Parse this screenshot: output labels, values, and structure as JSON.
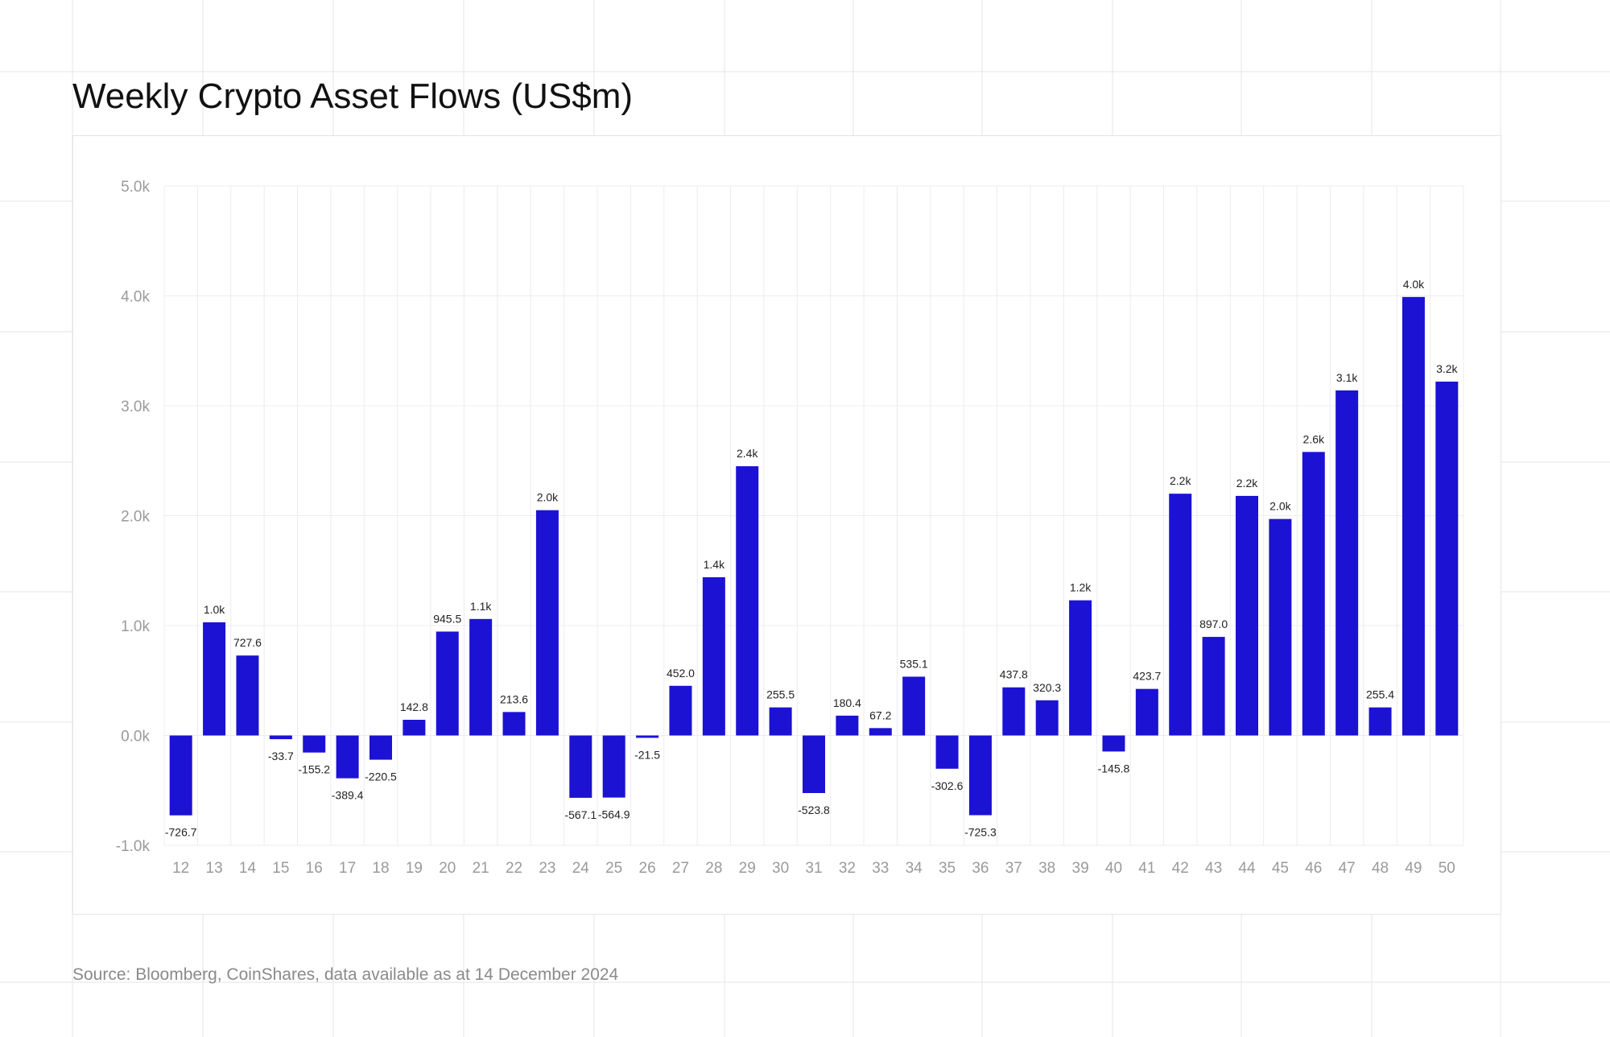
{
  "title": "Weekly Crypto Asset Flows (US$m)",
  "source": "Source: Bloomberg, CoinShares, data available as at 14 December 2024",
  "colors": {
    "bar": "#1c12d4",
    "grid": "#ececec",
    "tick": "#9a9a9a",
    "label": "#222222"
  },
  "chart_data": {
    "type": "bar",
    "title": "Weekly Crypto Asset Flows (US$m)",
    "xlabel": "",
    "ylabel": "",
    "ylim": [
      -1000,
      5000
    ],
    "yticks": [
      {
        "value": 5000,
        "label": "5.0k"
      },
      {
        "value": 4000,
        "label": "4.0k"
      },
      {
        "value": 3000,
        "label": "3.0k"
      },
      {
        "value": 2000,
        "label": "2.0k"
      },
      {
        "value": 1000,
        "label": "1.0k"
      },
      {
        "value": 0,
        "label": "0.0k"
      },
      {
        "value": -1000,
        "label": "-1.0k"
      }
    ],
    "grid": true,
    "categories": [
      "12",
      "13",
      "14",
      "15",
      "16",
      "17",
      "18",
      "19",
      "20",
      "21",
      "22",
      "23",
      "24",
      "25",
      "26",
      "27",
      "28",
      "29",
      "30",
      "31",
      "32",
      "33",
      "34",
      "35",
      "36",
      "37",
      "38",
      "39",
      "40",
      "41",
      "42",
      "43",
      "44",
      "45",
      "46",
      "47",
      "48",
      "49",
      "50"
    ],
    "values": [
      -726.7,
      1030,
      727.6,
      -33.7,
      -155.2,
      -389.4,
      -220.5,
      142.8,
      945.5,
      1060,
      213.6,
      2050,
      -567.1,
      -564.9,
      -21.5,
      452.0,
      1440,
      2450,
      255.5,
      -523.8,
      180.4,
      67.2,
      535.1,
      -302.6,
      -725.3,
      437.8,
      320.3,
      1230,
      -145.8,
      423.7,
      2200,
      897.0,
      2180,
      1970,
      2580,
      3140,
      255.4,
      3990,
      3220
    ],
    "data_labels": [
      "-726.7",
      "1.0k",
      "727.6",
      "-33.7",
      "-155.2",
      "-389.4",
      "-220.5",
      "142.8",
      "945.5",
      "1.1k",
      "213.6",
      "2.0k",
      "-567.1",
      "-564.9",
      "-21.5",
      "452.0",
      "1.4k",
      "2.4k",
      "255.5",
      "-523.8",
      "180.4",
      "67.2",
      "535.1",
      "-302.6",
      "-725.3",
      "437.8",
      "320.3",
      "1.2k",
      "-145.8",
      "423.7",
      "2.2k",
      "897.0",
      "2.2k",
      "2.0k",
      "2.6k",
      "3.1k",
      "255.4",
      "4.0k",
      "3.2k"
    ]
  }
}
